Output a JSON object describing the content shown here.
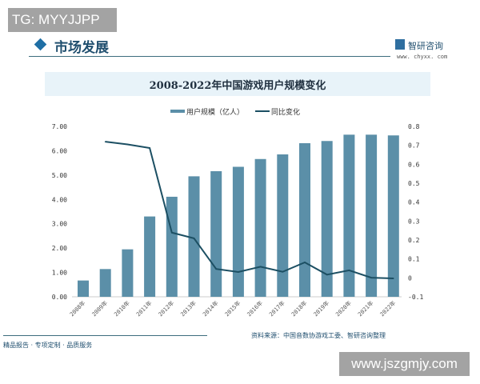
{
  "overlay_top": "TG: MYYJJPP",
  "overlay_bottom": "www.jszgmjy.com",
  "header": {
    "section_title": "市场发展",
    "brand": "智研咨询",
    "brand_url": "www. chyxx. com"
  },
  "footer": {
    "slogan": "精品报告 · 专项定制 · 品质服务",
    "source": "资料来源：中国音数协游戏工委、智研咨询整理"
  },
  "colors": {
    "bar": "#5b8fa8",
    "line": "#1c4f63"
  },
  "chart_data": {
    "type": "bar+line",
    "title": "2008-2022年中国游戏用户规模变化",
    "categories": [
      "2008年",
      "2009年",
      "2010年",
      "2011年",
      "2012年",
      "2013年",
      "2014年",
      "2015年",
      "2016年",
      "2017年",
      "2018年",
      "2019年",
      "2020年",
      "2021年",
      "2022年"
    ],
    "series": [
      {
        "name": "用户规模（亿人）",
        "type": "bar",
        "axis": "left",
        "values": [
          0.67,
          1.14,
          1.95,
          3.3,
          4.11,
          4.95,
          5.16,
          5.34,
          5.66,
          5.85,
          6.31,
          6.4,
          6.66,
          6.66,
          6.63
        ]
      },
      {
        "name": "同比变化",
        "type": "line",
        "axis": "right",
        "values": [
          null,
          0.719,
          0.705,
          0.686,
          0.239,
          0.209,
          0.047,
          0.031,
          0.059,
          0.032,
          0.082,
          0.017,
          0.04,
          0.001,
          -0.003
        ]
      }
    ],
    "left_axis": {
      "ylim": [
        0,
        7
      ],
      "ticks": [
        "0.00",
        "1.00",
        "2.00",
        "3.00",
        "4.00",
        "5.00",
        "6.00",
        "7.00"
      ]
    },
    "right_axis": {
      "ylim": [
        -0.1,
        0.8
      ],
      "ticks": [
        "-0.1",
        "0",
        "0.1",
        "0.2",
        "0.3",
        "0.4",
        "0.5",
        "0.6",
        "0.7",
        "0.8"
      ]
    },
    "legend": "top-center",
    "grid": false
  }
}
